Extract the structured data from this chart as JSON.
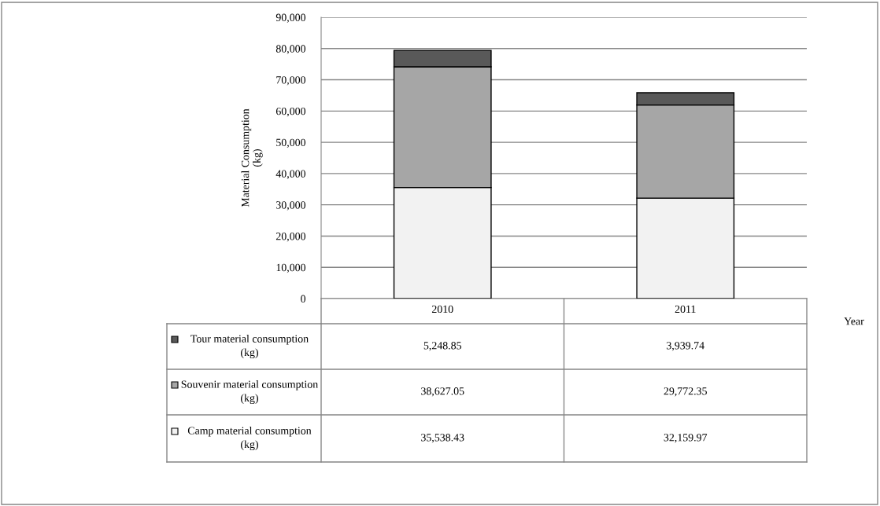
{
  "chart_data": {
    "type": "bar",
    "stacked": true,
    "ylabel": "Material Consumption\n(kg)",
    "xlabel": "Year",
    "categories": [
      "2010",
      "2011"
    ],
    "series": [
      {
        "name": "Camp material consumption\n(kg)",
        "color": "#f2f2f2",
        "values": [
          35538.43,
          32159.97
        ],
        "value_labels": [
          "35,538.43",
          "32,159.97"
        ]
      },
      {
        "name": "Souvenir material consumption\n(kg)",
        "color": "#a6a6a6",
        "values": [
          38627.05,
          29772.35
        ],
        "value_labels": [
          "38,627.05",
          "29,772.35"
        ]
      },
      {
        "name": "Tour material consumption\n(kg)",
        "color": "#595959",
        "values": [
          5248.85,
          3939.74
        ],
        "value_labels": [
          "5,248.85",
          "3,939.74"
        ]
      }
    ],
    "ylim": [
      0,
      90000
    ],
    "yticks": [
      {
        "value": 0,
        "label": "0"
      },
      {
        "value": 10000,
        "label": "10,000"
      },
      {
        "value": 20000,
        "label": "20,000"
      },
      {
        "value": 30000,
        "label": "30,000"
      },
      {
        "value": 40000,
        "label": "40,000"
      },
      {
        "value": 50000,
        "label": "50,000"
      },
      {
        "value": 60000,
        "label": "60,000"
      },
      {
        "value": 70000,
        "label": "70,000"
      },
      {
        "value": 80000,
        "label": "80,000"
      },
      {
        "value": 90000,
        "label": "90,000"
      }
    ],
    "grid": "y",
    "legend": "bottom"
  }
}
